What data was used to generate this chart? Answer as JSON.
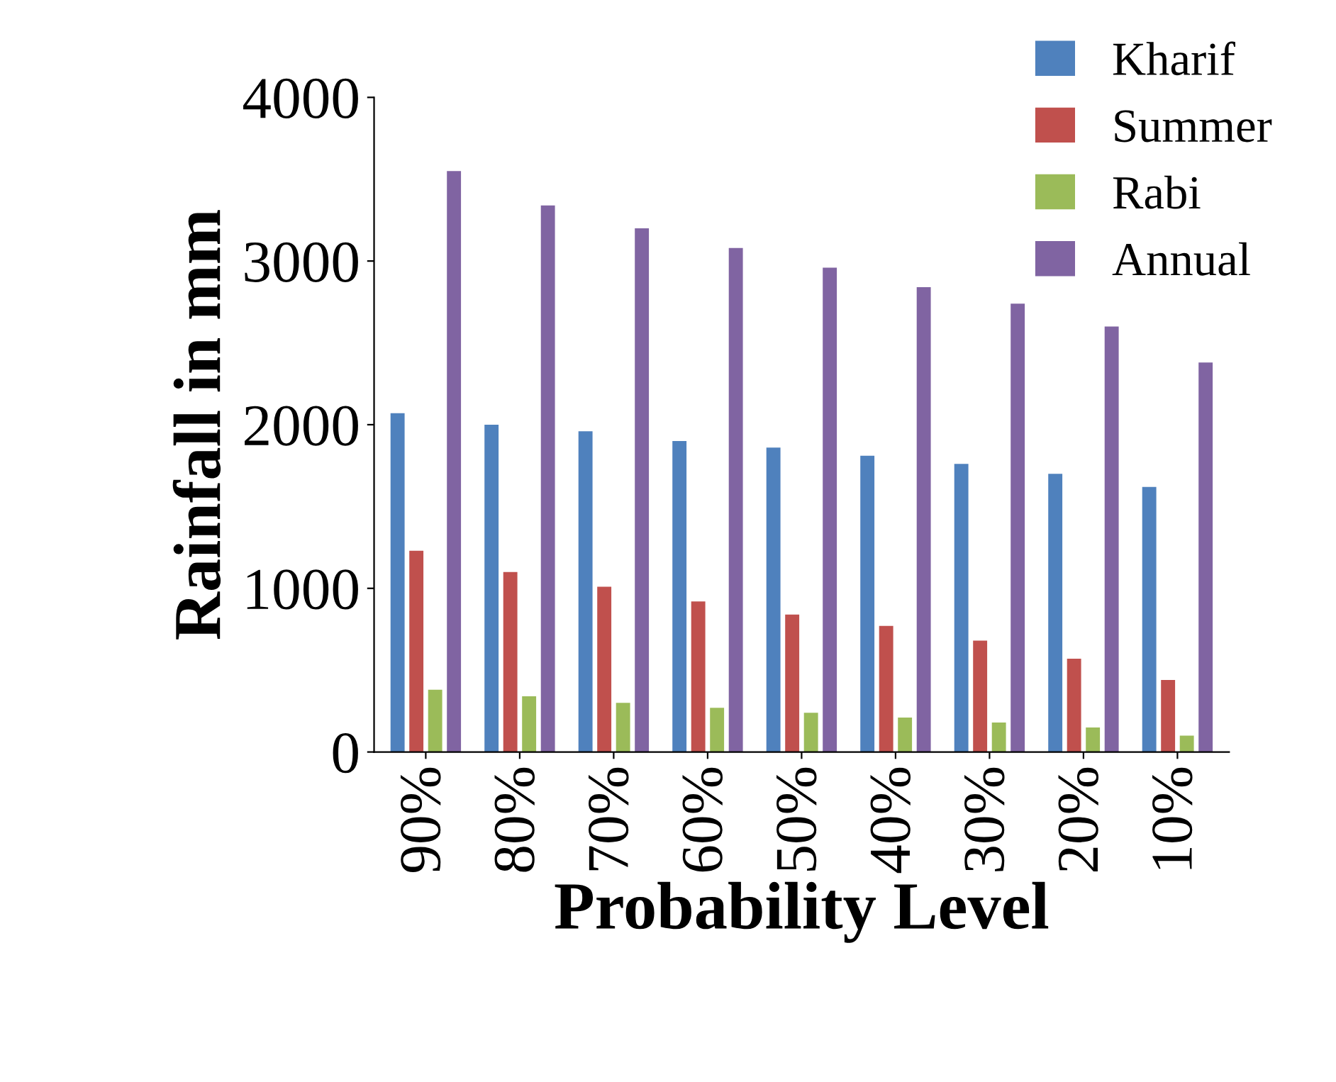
{
  "chart_data": {
    "type": "bar",
    "xlabel": "Probability Level",
    "ylabel": "Rainfall in mm",
    "categories": [
      "90%",
      "80%",
      "70%",
      "60%",
      "50%",
      "40%",
      "30%",
      "20%",
      "10%"
    ],
    "series": [
      {
        "name": "Kharif",
        "color": "#4f81bd",
        "values": [
          2070,
          2000,
          1960,
          1900,
          1860,
          1810,
          1760,
          1700,
          1620
        ]
      },
      {
        "name": "Summer",
        "color": "#c0504d",
        "values": [
          1230,
          1100,
          1010,
          920,
          840,
          770,
          680,
          570,
          440
        ]
      },
      {
        "name": "Rabi",
        "color": "#9bbb59",
        "values": [
          380,
          340,
          300,
          270,
          240,
          210,
          180,
          150,
          100
        ]
      },
      {
        "name": "Annual",
        "color": "#8064a2",
        "values": [
          3550,
          3340,
          3200,
          3080,
          2960,
          2840,
          2740,
          2600,
          2380
        ]
      }
    ],
    "ylim": [
      0,
      4000
    ],
    "yticks": [
      0,
      1000,
      2000,
      3000,
      4000
    ],
    "grid": false,
    "legend": "top right"
  }
}
